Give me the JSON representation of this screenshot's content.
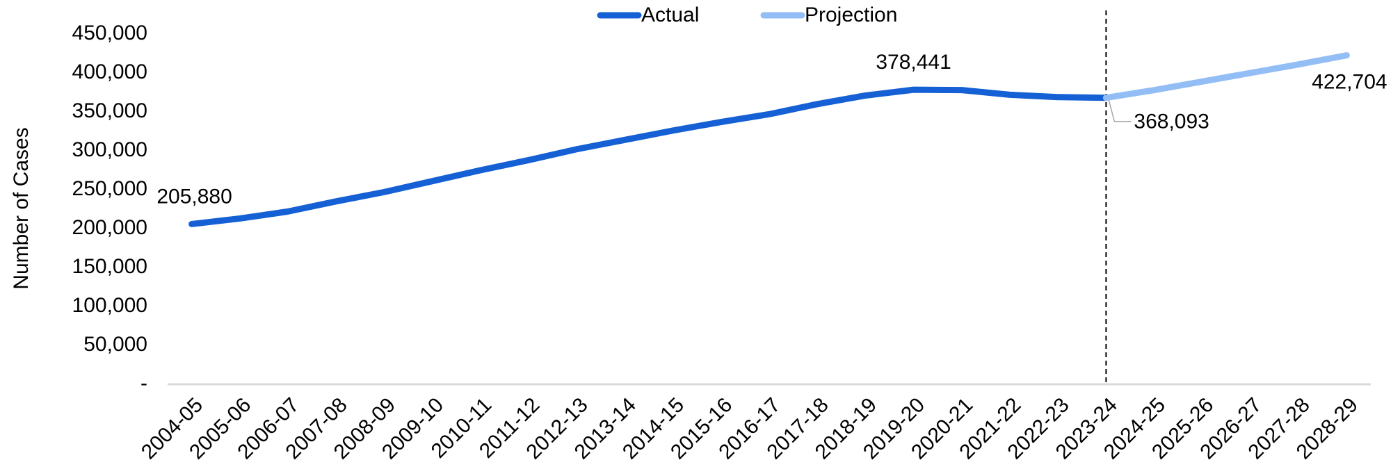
{
  "chart_data": {
    "type": "line",
    "y_label": "Number of Cases",
    "categories": [
      "2004-05",
      "2005-06",
      "2006-07",
      "2007-08",
      "2008-09",
      "2009-10",
      "2010-11",
      "2011-12",
      "2012-13",
      "2013-14",
      "2014-15",
      "2015-16",
      "2016-17",
      "2017-18",
      "2018-19",
      "2019-20",
      "2020-21",
      "2021-22",
      "2022-23",
      "2023-24",
      "2024-25",
      "2025-26",
      "2026-27",
      "2027-28",
      "2028-29"
    ],
    "series": [
      {
        "name": "Actual",
        "color": "#1560d4",
        "values": [
          205880,
          213000,
          222000,
          235000,
          247000,
          261000,
          275000,
          288000,
          302000,
          314000,
          326000,
          337000,
          347000,
          360000,
          371000,
          378441,
          378000,
          372000,
          369000,
          368093,
          null,
          null,
          null,
          null,
          null
        ],
        "value_labels": [
          "205,880",
          null,
          null,
          null,
          null,
          null,
          null,
          null,
          null,
          null,
          null,
          null,
          null,
          null,
          null,
          "378,441",
          null,
          null,
          null,
          "368,093",
          null,
          null,
          null,
          null,
          null
        ]
      },
      {
        "name": "Projection",
        "color": "#93bdf5",
        "values": [
          null,
          null,
          null,
          null,
          null,
          null,
          null,
          null,
          null,
          null,
          null,
          null,
          null,
          null,
          null,
          null,
          null,
          null,
          null,
          368093,
          378000,
          389000,
          400000,
          411000,
          422704
        ],
        "value_labels": [
          null,
          null,
          null,
          null,
          null,
          null,
          null,
          null,
          null,
          null,
          null,
          null,
          null,
          null,
          null,
          null,
          null,
          null,
          null,
          null,
          null,
          null,
          null,
          null,
          "422,704"
        ]
      }
    ],
    "ylim": [
      0,
      450000
    ],
    "yticks": [
      {
        "value": 0,
        "label": "-"
      },
      {
        "value": 50000,
        "label": "50,000"
      },
      {
        "value": 100000,
        "label": "100,000"
      },
      {
        "value": 150000,
        "label": "150,000"
      },
      {
        "value": 200000,
        "label": "200,000"
      },
      {
        "value": 250000,
        "label": "250,000"
      },
      {
        "value": 300000,
        "label": "300,000"
      },
      {
        "value": 350000,
        "label": "350,000"
      },
      {
        "value": 400000,
        "label": "400,000"
      },
      {
        "value": 450000,
        "label": "450,000"
      }
    ],
    "grid": false,
    "legend": "top"
  }
}
